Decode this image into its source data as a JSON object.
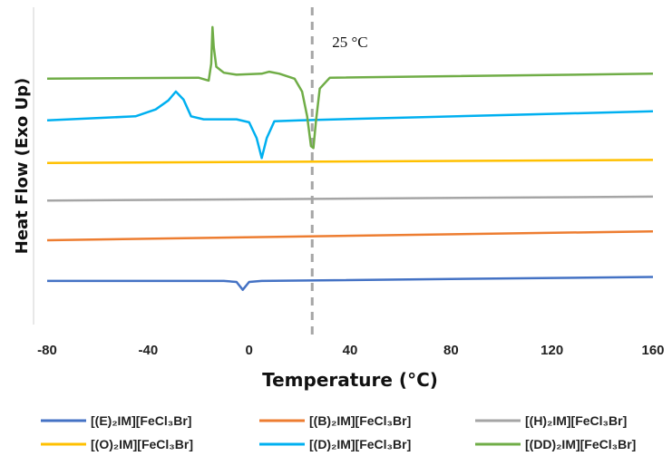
{
  "chart_data": {
    "type": "line",
    "xlabel": "Temperature (°C)",
    "ylabel": "Heat Flow (Exo Up)",
    "xlim": [
      -80,
      160
    ],
    "xticks": [
      -80,
      -40,
      0,
      40,
      80,
      120,
      160
    ],
    "grid": false,
    "legend_position": "bottom",
    "annotation": {
      "text": "25 °C",
      "x": 25,
      "style": "dashed vertical line"
    },
    "series": [
      {
        "name": "[(E)₂IM][FeCl₃Br]",
        "color": "#4472C4",
        "points": [
          [
            -80,
            0.4
          ],
          [
            -30,
            0.4
          ],
          [
            -10,
            0.4
          ],
          [
            -5,
            0.3
          ],
          [
            -2.5,
            -0.5
          ],
          [
            0,
            0.3
          ],
          [
            5,
            0.4
          ],
          [
            160,
            0.8
          ]
        ]
      },
      {
        "name": "[(B)₂IM][FeCl₃Br]",
        "color": "#ED7D31",
        "points": [
          [
            -80,
            4.5
          ],
          [
            160,
            5.4
          ]
        ]
      },
      {
        "name": "[(H)₂IM][FeCl₃Br]",
        "color": "#A5A5A5",
        "points": [
          [
            -80,
            8.5
          ],
          [
            160,
            8.9
          ]
        ]
      },
      {
        "name": "[(O)₂IM][FeCl₃Br]",
        "color": "#FFC000",
        "points": [
          [
            -80,
            12.3
          ],
          [
            160,
            12.6
          ]
        ]
      },
      {
        "name": "[(D)₂IM][FeCl₃Br]",
        "color": "#00B0F0",
        "points": [
          [
            -80,
            16.6
          ],
          [
            -45,
            17.0
          ],
          [
            -37,
            17.7
          ],
          [
            -32,
            18.6
          ],
          [
            -29,
            19.5
          ],
          [
            -26,
            18.7
          ],
          [
            -23,
            17.0
          ],
          [
            -18,
            16.7
          ],
          [
            -5,
            16.7
          ],
          [
            0,
            16.4
          ],
          [
            3,
            14.8
          ],
          [
            5,
            12.8
          ],
          [
            7,
            14.8
          ],
          [
            10,
            16.5
          ],
          [
            20,
            16.6
          ],
          [
            160,
            17.5
          ]
        ]
      },
      {
        "name": "[(DD)₂IM][FeCl₃Br]",
        "color": "#70AD47",
        "points": [
          [
            -80,
            20.8
          ],
          [
            -20,
            20.9
          ],
          [
            -16,
            20.6
          ],
          [
            -15,
            22.3
          ],
          [
            -14.5,
            26.0
          ],
          [
            -14,
            24.0
          ],
          [
            -13,
            22.0
          ],
          [
            -10,
            21.4
          ],
          [
            -5,
            21.2
          ],
          [
            5,
            21.3
          ],
          [
            8,
            21.5
          ],
          [
            12,
            21.3
          ],
          [
            18,
            20.8
          ],
          [
            21,
            19.5
          ],
          [
            23,
            17.0
          ],
          [
            24.5,
            14.0
          ],
          [
            25.5,
            13.8
          ],
          [
            26.5,
            16.5
          ],
          [
            28,
            19.8
          ],
          [
            32,
            20.9
          ],
          [
            160,
            21.3
          ]
        ]
      }
    ]
  }
}
